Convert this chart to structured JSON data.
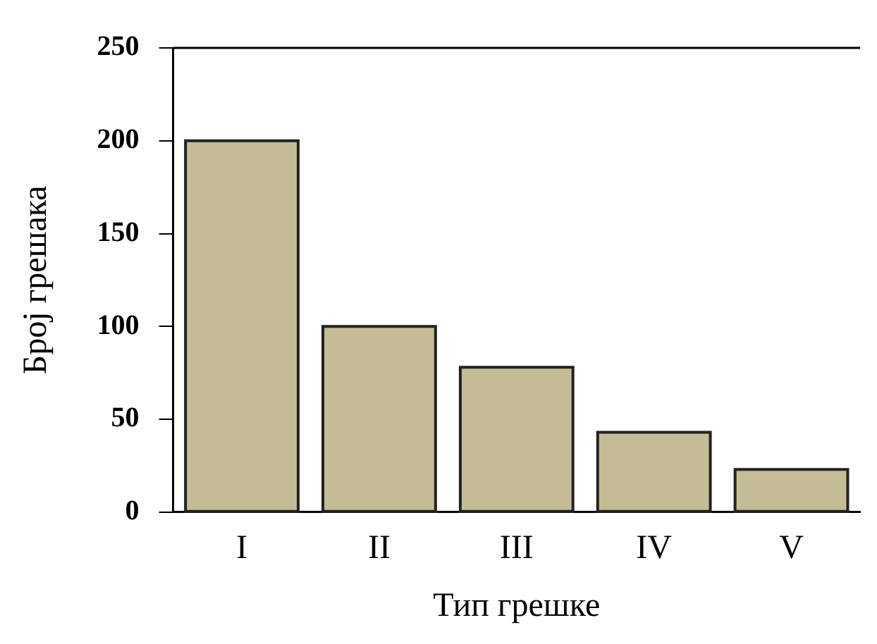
{
  "chart_data": {
    "type": "bar",
    "xlabel": "Тип грешке",
    "ylabel": "Број грешака",
    "categories": [
      "I",
      "II",
      "III",
      "IV",
      "V"
    ],
    "values": [
      200,
      100,
      78,
      43,
      23
    ],
    "color": "#c4bc96",
    "ylim": [
      0,
      250
    ],
    "yticks": [
      0,
      50,
      100,
      150,
      200,
      250
    ],
    "grid": false,
    "legend": false
  }
}
